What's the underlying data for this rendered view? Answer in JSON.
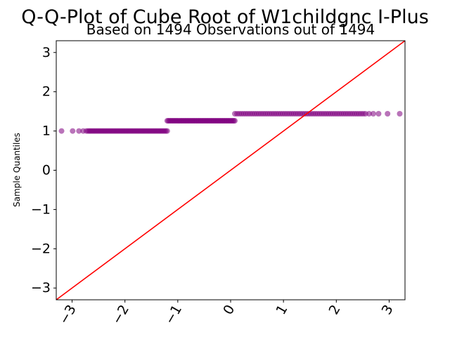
{
  "chart_data": {
    "type": "scatter",
    "title": "Q-Q-Plot of Cube Root of W1childgnc I-Plus",
    "subtitle": "Based on 1494 Observations out of 1494",
    "xlabel": "",
    "ylabel": "Sample Quantiles",
    "xlim": [
      -3.3,
      3.3
    ],
    "ylim": [
      -3.3,
      3.3
    ],
    "xticks": [
      -3,
      -2,
      -1,
      0,
      1,
      2,
      3
    ],
    "yticks": [
      -3,
      -2,
      -1,
      0,
      1,
      2,
      3
    ],
    "xtick_labels": [
      "−3",
      "−2",
      "−1",
      "0",
      "1",
      "2",
      "3"
    ],
    "ytick_labels": [
      "−3",
      "−2",
      "−1",
      "0",
      "1",
      "2",
      "3"
    ],
    "grid": false,
    "series": [
      {
        "kind": "points",
        "color": "#800080",
        "segments": [
          {
            "x_start": -2.7,
            "x_end": -1.2,
            "y": 1.0
          },
          {
            "x_start": -1.2,
            "x_end": 0.08,
            "y": 1.26
          },
          {
            "x_start": 0.08,
            "x_end": 2.55,
            "y": 1.44
          }
        ],
        "outliers": [
          {
            "x": -3.2,
            "y": 1.0
          },
          {
            "x": -2.99,
            "y": 1.0
          },
          {
            "x": -2.87,
            "y": 1.0
          },
          {
            "x": -2.79,
            "y": 1.0
          },
          {
            "x": -2.73,
            "y": 1.0
          },
          {
            "x": 2.62,
            "y": 1.44
          },
          {
            "x": 2.7,
            "y": 1.44
          },
          {
            "x": 2.8,
            "y": 1.44
          },
          {
            "x": 2.97,
            "y": 1.44
          },
          {
            "x": 3.2,
            "y": 1.44
          }
        ]
      },
      {
        "kind": "reference-line",
        "color": "#ff0000",
        "slope": 1,
        "intercept": 0
      }
    ]
  }
}
